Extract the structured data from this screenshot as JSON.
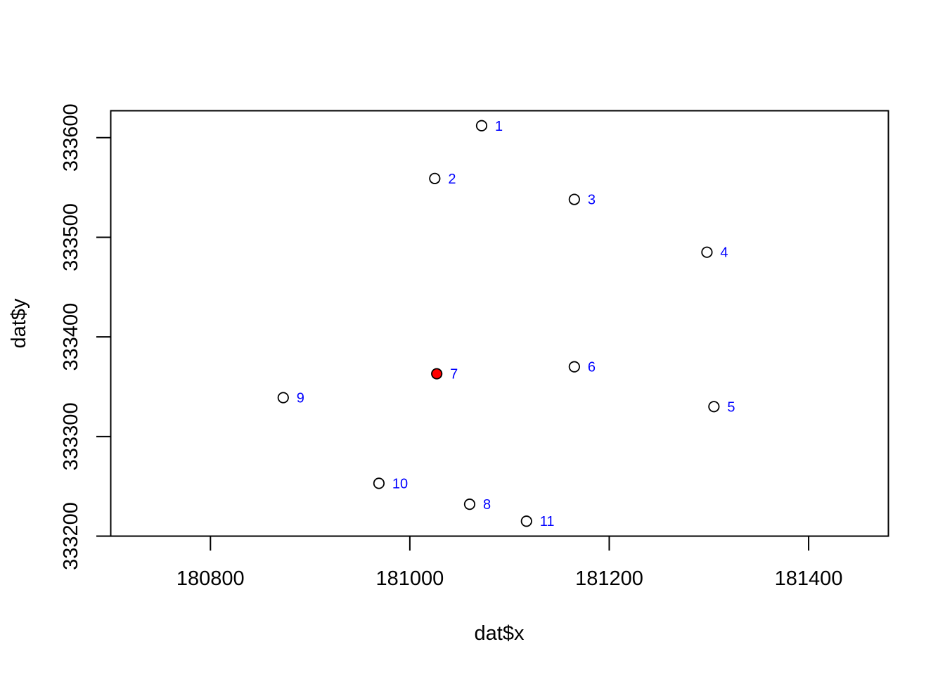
{
  "chart_data": {
    "type": "scatter",
    "xlabel": "dat$x",
    "ylabel": "dat$y",
    "xlim": [
      180700,
      181480
    ],
    "ylim": [
      333200,
      333627
    ],
    "x_ticks": [
      180800,
      181000,
      181200,
      181400
    ],
    "y_ticks": [
      333200,
      333300,
      333400,
      333500,
      333600
    ],
    "grid": false,
    "label_color": "#0000ff",
    "point_stroke": "#000000",
    "highlight_fill": "#ff0000",
    "points": [
      {
        "label": "1",
        "x": 181072,
        "y": 333612,
        "highlight": false
      },
      {
        "label": "2",
        "x": 181025,
        "y": 333559,
        "highlight": false
      },
      {
        "label": "3",
        "x": 181165,
        "y": 333538,
        "highlight": false
      },
      {
        "label": "4",
        "x": 181298,
        "y": 333485,
        "highlight": false
      },
      {
        "label": "5",
        "x": 181305,
        "y": 333330,
        "highlight": false
      },
      {
        "label": "6",
        "x": 181165,
        "y": 333370,
        "highlight": false
      },
      {
        "label": "7",
        "x": 181027,
        "y": 333363,
        "highlight": true
      },
      {
        "label": "8",
        "x": 181060,
        "y": 333232,
        "highlight": false
      },
      {
        "label": "9",
        "x": 180873,
        "y": 333339,
        "highlight": false
      },
      {
        "label": "10",
        "x": 180969,
        "y": 333253,
        "highlight": false
      },
      {
        "label": "11",
        "x": 181117,
        "y": 333215,
        "highlight": false
      }
    ]
  }
}
